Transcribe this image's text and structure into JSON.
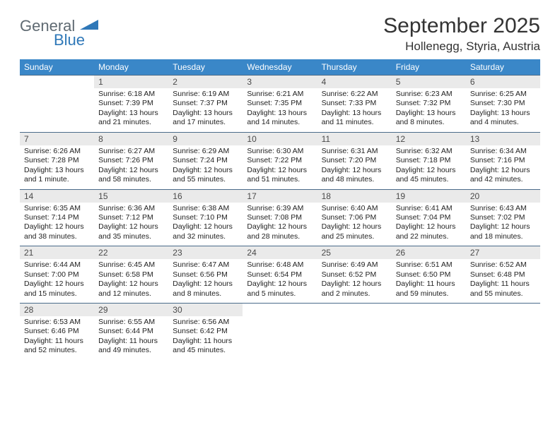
{
  "logo": {
    "text1": "General",
    "text2": "Blue"
  },
  "title": "September 2025",
  "location": "Hollenegg, Styria, Austria",
  "colors": {
    "header_bg": "#3a87c8",
    "header_text": "#ffffff",
    "daynum_bg": "#eaeaea",
    "border": "#4a6b8a",
    "logo_gray": "#5f6a72",
    "logo_blue": "#2f78b8"
  },
  "day_names": [
    "Sunday",
    "Monday",
    "Tuesday",
    "Wednesday",
    "Thursday",
    "Friday",
    "Saturday"
  ],
  "weeks": [
    [
      {
        "n": "",
        "sr": "",
        "ss": "",
        "dl": ""
      },
      {
        "n": "1",
        "sr": "Sunrise: 6:18 AM",
        "ss": "Sunset: 7:39 PM",
        "dl": "Daylight: 13 hours and 21 minutes."
      },
      {
        "n": "2",
        "sr": "Sunrise: 6:19 AM",
        "ss": "Sunset: 7:37 PM",
        "dl": "Daylight: 13 hours and 17 minutes."
      },
      {
        "n": "3",
        "sr": "Sunrise: 6:21 AM",
        "ss": "Sunset: 7:35 PM",
        "dl": "Daylight: 13 hours and 14 minutes."
      },
      {
        "n": "4",
        "sr": "Sunrise: 6:22 AM",
        "ss": "Sunset: 7:33 PM",
        "dl": "Daylight: 13 hours and 11 minutes."
      },
      {
        "n": "5",
        "sr": "Sunrise: 6:23 AM",
        "ss": "Sunset: 7:32 PM",
        "dl": "Daylight: 13 hours and 8 minutes."
      },
      {
        "n": "6",
        "sr": "Sunrise: 6:25 AM",
        "ss": "Sunset: 7:30 PM",
        "dl": "Daylight: 13 hours and 4 minutes."
      }
    ],
    [
      {
        "n": "7",
        "sr": "Sunrise: 6:26 AM",
        "ss": "Sunset: 7:28 PM",
        "dl": "Daylight: 13 hours and 1 minute."
      },
      {
        "n": "8",
        "sr": "Sunrise: 6:27 AM",
        "ss": "Sunset: 7:26 PM",
        "dl": "Daylight: 12 hours and 58 minutes."
      },
      {
        "n": "9",
        "sr": "Sunrise: 6:29 AM",
        "ss": "Sunset: 7:24 PM",
        "dl": "Daylight: 12 hours and 55 minutes."
      },
      {
        "n": "10",
        "sr": "Sunrise: 6:30 AM",
        "ss": "Sunset: 7:22 PM",
        "dl": "Daylight: 12 hours and 51 minutes."
      },
      {
        "n": "11",
        "sr": "Sunrise: 6:31 AM",
        "ss": "Sunset: 7:20 PM",
        "dl": "Daylight: 12 hours and 48 minutes."
      },
      {
        "n": "12",
        "sr": "Sunrise: 6:32 AM",
        "ss": "Sunset: 7:18 PM",
        "dl": "Daylight: 12 hours and 45 minutes."
      },
      {
        "n": "13",
        "sr": "Sunrise: 6:34 AM",
        "ss": "Sunset: 7:16 PM",
        "dl": "Daylight: 12 hours and 42 minutes."
      }
    ],
    [
      {
        "n": "14",
        "sr": "Sunrise: 6:35 AM",
        "ss": "Sunset: 7:14 PM",
        "dl": "Daylight: 12 hours and 38 minutes."
      },
      {
        "n": "15",
        "sr": "Sunrise: 6:36 AM",
        "ss": "Sunset: 7:12 PM",
        "dl": "Daylight: 12 hours and 35 minutes."
      },
      {
        "n": "16",
        "sr": "Sunrise: 6:38 AM",
        "ss": "Sunset: 7:10 PM",
        "dl": "Daylight: 12 hours and 32 minutes."
      },
      {
        "n": "17",
        "sr": "Sunrise: 6:39 AM",
        "ss": "Sunset: 7:08 PM",
        "dl": "Daylight: 12 hours and 28 minutes."
      },
      {
        "n": "18",
        "sr": "Sunrise: 6:40 AM",
        "ss": "Sunset: 7:06 PM",
        "dl": "Daylight: 12 hours and 25 minutes."
      },
      {
        "n": "19",
        "sr": "Sunrise: 6:41 AM",
        "ss": "Sunset: 7:04 PM",
        "dl": "Daylight: 12 hours and 22 minutes."
      },
      {
        "n": "20",
        "sr": "Sunrise: 6:43 AM",
        "ss": "Sunset: 7:02 PM",
        "dl": "Daylight: 12 hours and 18 minutes."
      }
    ],
    [
      {
        "n": "21",
        "sr": "Sunrise: 6:44 AM",
        "ss": "Sunset: 7:00 PM",
        "dl": "Daylight: 12 hours and 15 minutes."
      },
      {
        "n": "22",
        "sr": "Sunrise: 6:45 AM",
        "ss": "Sunset: 6:58 PM",
        "dl": "Daylight: 12 hours and 12 minutes."
      },
      {
        "n": "23",
        "sr": "Sunrise: 6:47 AM",
        "ss": "Sunset: 6:56 PM",
        "dl": "Daylight: 12 hours and 8 minutes."
      },
      {
        "n": "24",
        "sr": "Sunrise: 6:48 AM",
        "ss": "Sunset: 6:54 PM",
        "dl": "Daylight: 12 hours and 5 minutes."
      },
      {
        "n": "25",
        "sr": "Sunrise: 6:49 AM",
        "ss": "Sunset: 6:52 PM",
        "dl": "Daylight: 12 hours and 2 minutes."
      },
      {
        "n": "26",
        "sr": "Sunrise: 6:51 AM",
        "ss": "Sunset: 6:50 PM",
        "dl": "Daylight: 11 hours and 59 minutes."
      },
      {
        "n": "27",
        "sr": "Sunrise: 6:52 AM",
        "ss": "Sunset: 6:48 PM",
        "dl": "Daylight: 11 hours and 55 minutes."
      }
    ],
    [
      {
        "n": "28",
        "sr": "Sunrise: 6:53 AM",
        "ss": "Sunset: 6:46 PM",
        "dl": "Daylight: 11 hours and 52 minutes."
      },
      {
        "n": "29",
        "sr": "Sunrise: 6:55 AM",
        "ss": "Sunset: 6:44 PM",
        "dl": "Daylight: 11 hours and 49 minutes."
      },
      {
        "n": "30",
        "sr": "Sunrise: 6:56 AM",
        "ss": "Sunset: 6:42 PM",
        "dl": "Daylight: 11 hours and 45 minutes."
      },
      {
        "n": "",
        "sr": "",
        "ss": "",
        "dl": ""
      },
      {
        "n": "",
        "sr": "",
        "ss": "",
        "dl": ""
      },
      {
        "n": "",
        "sr": "",
        "ss": "",
        "dl": ""
      },
      {
        "n": "",
        "sr": "",
        "ss": "",
        "dl": ""
      }
    ]
  ]
}
